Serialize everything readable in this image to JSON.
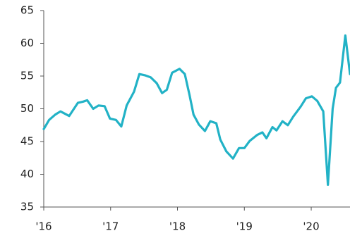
{
  "chart_data": {
    "type": "line",
    "x": [
      2016.0,
      2016.08,
      2016.17,
      2016.25,
      2016.38,
      2016.51,
      2016.59,
      2016.65,
      2016.74,
      2016.82,
      2016.91,
      2016.99,
      2017.08,
      2017.16,
      2017.24,
      2017.35,
      2017.43,
      2017.52,
      2017.6,
      2017.69,
      2017.77,
      2017.84,
      2017.92,
      2018.03,
      2018.11,
      2018.18,
      2018.24,
      2018.32,
      2018.41,
      2018.49,
      2018.58,
      2018.64,
      2018.73,
      2018.83,
      2018.92,
      2019.0,
      2019.08,
      2019.19,
      2019.27,
      2019.33,
      2019.42,
      2019.48,
      2019.57,
      2019.65,
      2019.73,
      2019.84,
      2019.92,
      2020.01,
      2020.09,
      2020.18,
      2020.25,
      2020.32,
      2020.37,
      2020.43,
      2020.51,
      2020.58
    ],
    "series": [
      {
        "color": "#22b2c6",
        "values": [
          46.9,
          48.3,
          49.1,
          49.6,
          48.9,
          50.9,
          51.1,
          51.3,
          50.0,
          50.5,
          50.4,
          48.5,
          48.3,
          47.3,
          50.5,
          52.6,
          55.3,
          55.1,
          54.8,
          53.9,
          52.4,
          52.9,
          55.5,
          56.1,
          55.3,
          52.1,
          49.1,
          47.6,
          46.6,
          48.1,
          47.8,
          45.3,
          43.5,
          42.4,
          44.0,
          44.0,
          45.1,
          46.0,
          46.4,
          45.5,
          47.2,
          46.7,
          48.1,
          47.5,
          48.8,
          50.3,
          51.6,
          51.9,
          51.2,
          49.6,
          38.4,
          50.0,
          53.2,
          54.0,
          61.2,
          55.3
        ]
      }
    ],
    "xlim": [
      2016,
      2020.58
    ],
    "xticks": [
      {
        "value": 2016,
        "label": "'16"
      },
      {
        "value": 2017,
        "label": "'17"
      },
      {
        "value": 2018,
        "label": "'18"
      },
      {
        "value": 2019,
        "label": "'19"
      },
      {
        "value": 2020,
        "label": "'20"
      }
    ],
    "ylim": [
      35,
      65
    ],
    "yticks": [
      35,
      40,
      45,
      50,
      55,
      60,
      65
    ],
    "grid": false
  }
}
